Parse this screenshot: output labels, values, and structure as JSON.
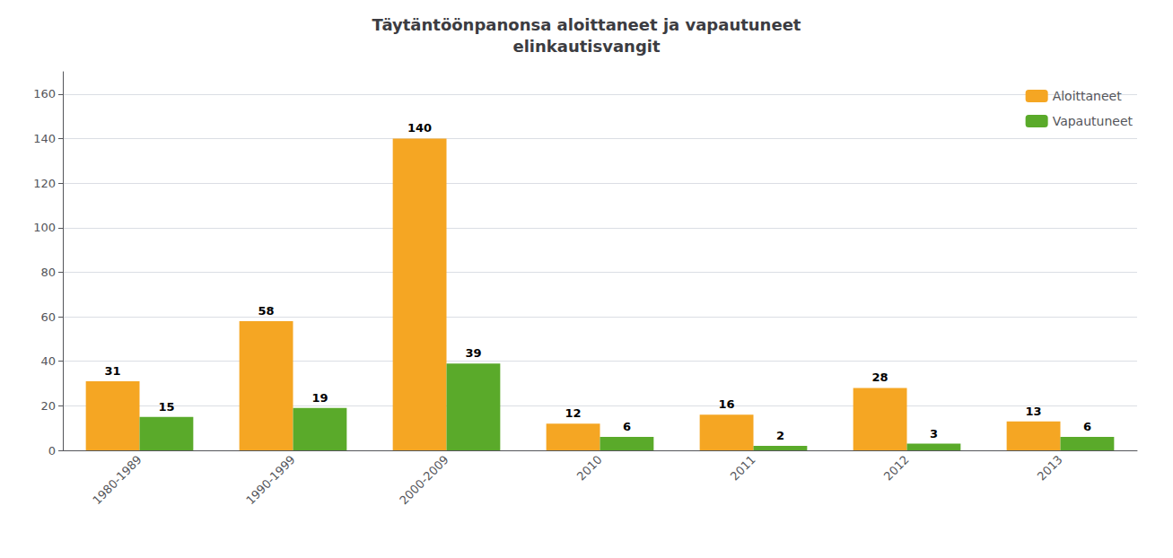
{
  "chart_data": {
    "type": "bar",
    "title": "Täytäntöönpanonsa aloittaneet ja vapautuneet\nelinkautisvangit",
    "categories": [
      "1980-1989",
      "1990-1999",
      "2000-2009",
      "2010",
      "2011",
      "2012",
      "2013"
    ],
    "series": [
      {
        "name": "Aloittaneet",
        "color": "#F5A623",
        "values": [
          31,
          58,
          140,
          12,
          16,
          28,
          13
        ]
      },
      {
        "name": "Vapautuneet",
        "color": "#5AAA2A",
        "values": [
          15,
          19,
          39,
          6,
          2,
          3,
          6
        ]
      }
    ],
    "ylim": [
      0,
      170
    ],
    "yticks": [
      0,
      20,
      40,
      60,
      80,
      100,
      120,
      140,
      160
    ],
    "grid": true,
    "legend": "upper right",
    "data_labels": true
  }
}
